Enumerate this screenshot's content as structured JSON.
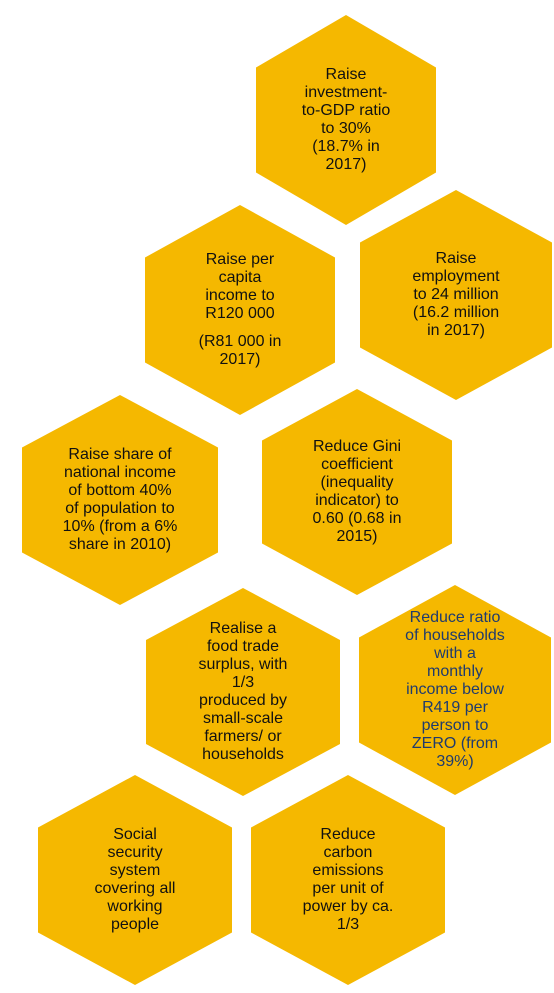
{
  "nodes": [
    {
      "lines": [
        "Raise",
        "investment-",
        "to-GDP ratio",
        "to 30%",
        "(18.7% in",
        "2017)"
      ]
    },
    {
      "lines": [
        "Raise per",
        "capita",
        "income to",
        "R120 000",
        "(R81 000 in",
        "2017)"
      ]
    },
    {
      "lines": [
        "Raise",
        "employment",
        "to 24 million",
        "(16.2 million",
        "in 2017)"
      ]
    },
    {
      "lines": [
        "Raise share of",
        "national income",
        "of bottom 40%",
        "of population to",
        "10% (from a 6%",
        "share in 2010)"
      ]
    },
    {
      "lines": [
        "Reduce Gini",
        "coefficient",
        "(inequality",
        "indicator) to",
        "0.60 (0.68 in",
        "2015)"
      ]
    },
    {
      "lines": [
        "Realise a",
        "food trade",
        "surplus, with",
        "1/3",
        "produced  by",
        "small-scale",
        "farmers/ or",
        "households"
      ]
    },
    {
      "lines": [
        "Reduce ratio",
        "of households",
        "with a",
        "monthly",
        "income below",
        "R419 per",
        "person to",
        "ZERO (from",
        "39%)"
      ],
      "text_color": "#1f3b6e"
    },
    {
      "lines": [
        "Social",
        "security",
        "system",
        "covering all",
        "working",
        "people"
      ]
    },
    {
      "lines": [
        "Reduce",
        "carbon",
        "emissions",
        "per unit of",
        "power by ca.",
        "1/3"
      ]
    }
  ]
}
